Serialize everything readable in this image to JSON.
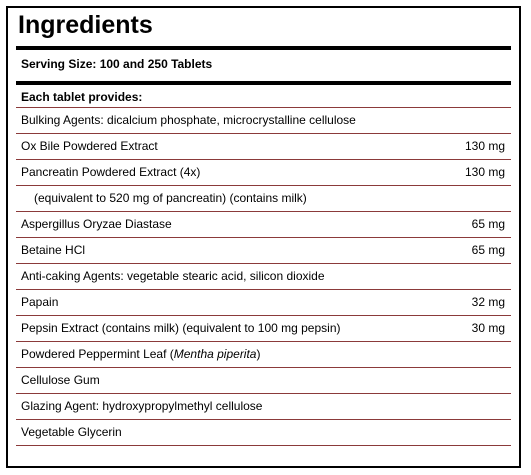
{
  "title": "Ingredients",
  "serving": "Serving Size: 100 and 250 Tablets",
  "section_header": "Each tablet provides:",
  "rows": [
    {
      "name": "Bulking Agents: dicalcium phosphate, microcrystalline cellulose",
      "amount": ""
    },
    {
      "name": "Ox Bile Powdered Extract",
      "amount": "130 mg"
    },
    {
      "name": "Pancreatin Powdered Extract (4x)",
      "amount": "130 mg"
    },
    {
      "name": "(equivalent to 520 mg of pancreatin) (contains milk)",
      "amount": ""
    },
    {
      "name": "Aspergillus Oryzae Diastase",
      "amount": "65 mg"
    },
    {
      "name": "Betaine HCl",
      "amount": "65 mg"
    },
    {
      "name": "Anti-caking Agents: vegetable stearic acid, silicon dioxide",
      "amount": ""
    },
    {
      "name": "Papain",
      "amount": "32 mg"
    },
    {
      "name": "Pepsin Extract (contains milk) (equivalent to 100 mg pepsin)",
      "amount": "30 mg"
    },
    {
      "name": "Powdered Peppermint Leaf (",
      "name_italic": "Mentha piperita",
      "name_suffix": ")",
      "amount": ""
    },
    {
      "name": "Cellulose Gum",
      "amount": ""
    },
    {
      "name": "Glazing Agent: hydroxypropylmethyl cellulose",
      "amount": ""
    },
    {
      "name": "Vegetable Glycerin",
      "amount": ""
    }
  ]
}
